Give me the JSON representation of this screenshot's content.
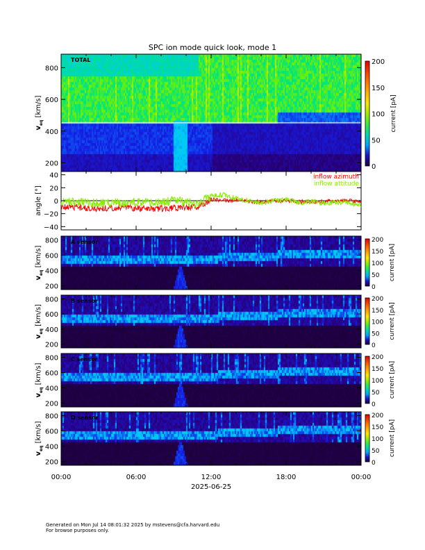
{
  "title": "SPC ion mode quick look, mode 1",
  "footer": {
    "line1": "Generated on Mon Jul 14 08:01:32 2025 by mstevens@cfa.harvard.edu",
    "line2": "For browse purposes only."
  },
  "chart_data": [
    {
      "type": "heatmap",
      "panel_label": "TOTAL",
      "ylabel": "v_eq [km/s]",
      "ylabel_main": "v",
      "ylabel_sub": "eq",
      "ylabel_unit": "[km/s]",
      "yticks": [
        "200",
        "400",
        "600",
        "800"
      ],
      "ylim": [
        145,
        885
      ],
      "colorbar": {
        "label": "current [pA]",
        "ticks": [
          "0",
          "50",
          "100",
          "150",
          "200"
        ],
        "range": [
          0,
          200
        ]
      }
    },
    {
      "type": "line",
      "ylabel": "angle [°]",
      "yticks": [
        "-40",
        "-20",
        "0",
        "20",
        "40"
      ],
      "ylim": [
        -45,
        45
      ],
      "x_hours": [
        0,
        1,
        2,
        3,
        4,
        5,
        6,
        7,
        8,
        9,
        10,
        11,
        12,
        13,
        14,
        15,
        16,
        17,
        18,
        19,
        20,
        21,
        22,
        23,
        24
      ],
      "series": [
        {
          "name": "inflow azimuth",
          "color": "#ff0000",
          "values": [
            -10,
            -10,
            -11,
            -12,
            -11,
            -10,
            -12,
            -13,
            -12,
            -11,
            -10,
            -9,
            2,
            0,
            1,
            -1,
            -2,
            0,
            0,
            -1,
            -2,
            -1,
            0,
            0,
            -2
          ]
        },
        {
          "name": "inflow attitude",
          "color": "#88ee00",
          "values": [
            0,
            -3,
            -2,
            -4,
            -2,
            -3,
            -2,
            -4,
            -3,
            0,
            -2,
            -5,
            7,
            9,
            4,
            0,
            -3,
            0,
            2,
            -3,
            -1,
            -4,
            -2,
            -3,
            -6
          ]
        }
      ],
      "zero_line": true
    },
    {
      "type": "heatmap",
      "panel_label": "A sensor",
      "ylabel_main": "v",
      "ylabel_sub": "eq",
      "ylabel_unit": "[km/s]",
      "yticks": [
        "200",
        "400",
        "600",
        "800"
      ],
      "ylim": [
        150,
        850
      ],
      "colorbar": {
        "label": "current [pA]",
        "ticks": [
          "0",
          "50",
          "100",
          "150",
          "200"
        ],
        "range": [
          0,
          200
        ]
      }
    },
    {
      "type": "heatmap",
      "panel_label": "B sensor",
      "ylabel_main": "v",
      "ylabel_sub": "eq",
      "ylabel_unit": "[km/s]",
      "yticks": [
        "200",
        "400",
        "600",
        "800"
      ],
      "ylim": [
        150,
        850
      ],
      "colorbar": {
        "label": "current [pA]",
        "ticks": [
          "0",
          "50",
          "100",
          "150",
          "200"
        ],
        "range": [
          0,
          200
        ]
      }
    },
    {
      "type": "heatmap",
      "panel_label": "C sensor",
      "ylabel_main": "v",
      "ylabel_sub": "eq",
      "ylabel_unit": "[km/s]",
      "yticks": [
        "200",
        "400",
        "600",
        "800"
      ],
      "ylim": [
        150,
        850
      ],
      "colorbar": {
        "label": "current [pA]",
        "ticks": [
          "0",
          "50",
          "100",
          "150",
          "200"
        ],
        "range": [
          0,
          200
        ]
      }
    },
    {
      "type": "heatmap",
      "panel_label": "D sensor",
      "ylabel_main": "v",
      "ylabel_sub": "eq",
      "ylabel_unit": "[km/s]",
      "yticks": [
        "200",
        "400",
        "600",
        "800"
      ],
      "ylim": [
        150,
        850
      ],
      "colorbar": {
        "label": "current [pA]",
        "ticks": [
          "0",
          "50",
          "100",
          "150",
          "200"
        ],
        "range": [
          0,
          200
        ]
      }
    }
  ],
  "xaxis": {
    "ticks": [
      "00:00",
      "06:00",
      "12:00",
      "18:00",
      "00:00"
    ],
    "date": "2025-06-25"
  }
}
